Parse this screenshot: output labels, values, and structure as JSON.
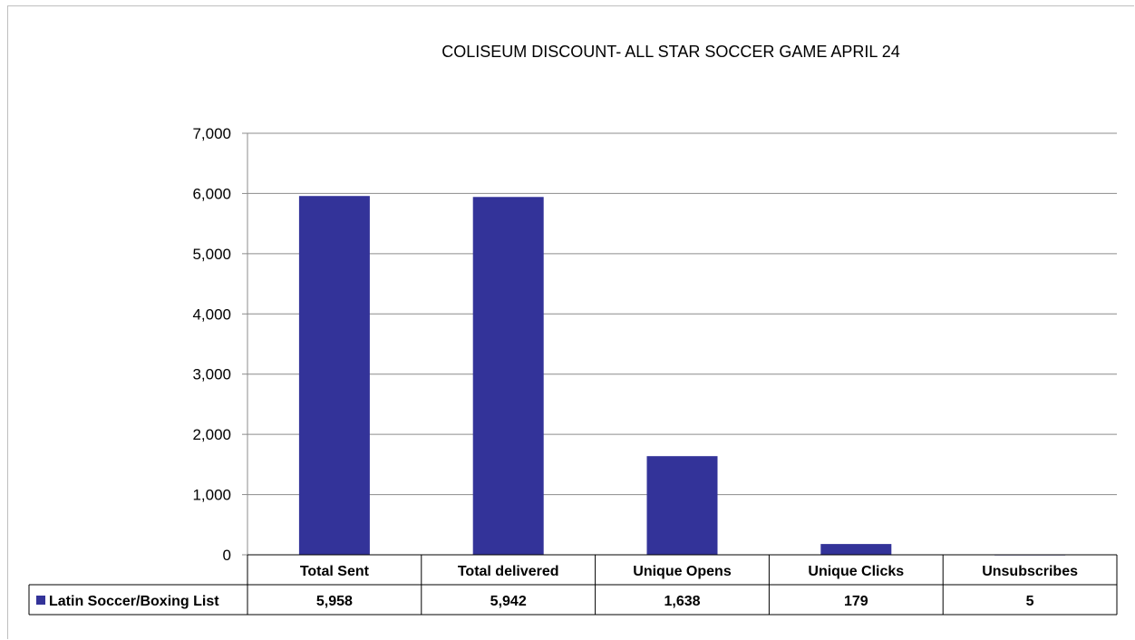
{
  "chart_data": {
    "type": "bar",
    "title": "COLISEUM DISCOUNT- ALL STAR SOCCER GAME APRIL 24",
    "categories": [
      "Total Sent",
      "Total delivered",
      "Unique Opens",
      "Unique Clicks",
      "Unsubscribes"
    ],
    "series": [
      {
        "name": "Latin Soccer/Boxing List",
        "values": [
          5958,
          5942,
          1638,
          179,
          5
        ],
        "value_labels": [
          "5,958",
          "5,942",
          "1,638",
          "179",
          "5"
        ],
        "color": "#333399"
      }
    ],
    "ylim": [
      0,
      7000
    ],
    "yticks": [
      0,
      1000,
      2000,
      3000,
      4000,
      5000,
      6000,
      7000
    ],
    "ytick_labels": [
      "0",
      "1,000",
      "2,000",
      "3,000",
      "4,000",
      "5,000",
      "6,000",
      "7,000"
    ],
    "grid": true,
    "legend": "data-table",
    "xlabel": "",
    "ylabel": ""
  }
}
